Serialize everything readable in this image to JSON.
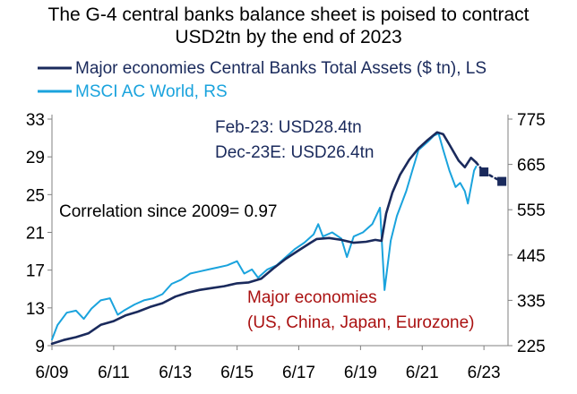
{
  "chart_data": {
    "type": "line",
    "title_lines": [
      "The G-4 central banks balance sheet is poised to contract",
      "USD2tn by the end of 2023"
    ],
    "legend": [
      {
        "label": "Major economies Central Banks Total Assets ($ tn), LS",
        "color": "#1a2a5c"
      },
      {
        "label": "MSCI AC World, RS",
        "color": "#1aa3dd"
      }
    ],
    "x_axis": {
      "ticks": [
        "6/09",
        "6/11",
        "6/13",
        "6/15",
        "6/17",
        "6/19",
        "6/21",
        "6/23"
      ],
      "tick_years": [
        2009.42,
        2011.42,
        2013.42,
        2015.42,
        2017.42,
        2019.42,
        2021.42,
        2023.42
      ],
      "range": [
        2009.42,
        2024.2
      ]
    },
    "y_left": {
      "ticks": [
        "9",
        "13",
        "17",
        "21",
        "25",
        "29",
        "33"
      ],
      "range": [
        9,
        33
      ]
    },
    "y_right": {
      "ticks": [
        "225",
        "335",
        "445",
        "555",
        "665",
        "775"
      ],
      "range": [
        225,
        775
      ]
    },
    "annotations": [
      {
        "text": "Feb-23: USD28.4tn",
        "color": "#1a2a5c"
      },
      {
        "text": "Dec-23E: USD26.4tn",
        "color": "#1a2a5c"
      },
      {
        "text": "Correlation since 2009= 0.97",
        "color": "#000000"
      },
      {
        "text": "Major economies",
        "color": "#aa1111"
      },
      {
        "text": "(US, China, Japan, Eurozone)",
        "color": "#aa1111"
      }
    ],
    "series": [
      {
        "name": "Major economies Central Banks Total Assets ($ tn), LS",
        "axis": "left",
        "color": "#1a2a5c",
        "x": [
          2009.42,
          2009.8,
          2010.2,
          2010.6,
          2011.0,
          2011.42,
          2011.8,
          2012.2,
          2012.6,
          2013.0,
          2013.42,
          2013.8,
          2014.2,
          2014.6,
          2015.0,
          2015.42,
          2015.8,
          2016.2,
          2016.6,
          2017.0,
          2017.42,
          2017.8,
          2018.0,
          2018.4,
          2018.8,
          2019.2,
          2019.6,
          2019.9,
          2020.1,
          2020.25,
          2020.45,
          2020.7,
          2021.0,
          2021.3,
          2021.6,
          2021.9,
          2022.1,
          2022.3,
          2022.6,
          2022.8,
          2023.0,
          2023.17
        ],
        "y": [
          9.2,
          9.6,
          9.9,
          10.3,
          11.2,
          11.6,
          12.2,
          12.6,
          13.1,
          13.5,
          14.2,
          14.6,
          14.9,
          15.1,
          15.3,
          15.6,
          15.7,
          16.1,
          17.2,
          18.2,
          19.1,
          19.9,
          20.3,
          20.4,
          20.2,
          19.9,
          20.0,
          20.2,
          20.1,
          23.0,
          25.2,
          27.1,
          28.7,
          29.9,
          30.8,
          31.6,
          31.4,
          30.3,
          28.6,
          27.9,
          28.9,
          28.4
        ]
      },
      {
        "name": "Major economies Central Banks Total Assets ($ tn) — estimate",
        "axis": "left",
        "color": "#1a2a5c",
        "dashed": true,
        "x": [
          2023.17,
          2023.42,
          2023.75,
          2024.0
        ],
        "y": [
          28.4,
          27.4,
          26.8,
          26.4
        ]
      },
      {
        "name": "MSCI AC World, RS",
        "axis": "right",
        "color": "#1aa3dd",
        "x": [
          2009.42,
          2009.6,
          2009.9,
          2010.2,
          2010.45,
          2010.7,
          2011.0,
          2011.3,
          2011.55,
          2011.75,
          2012.1,
          2012.4,
          2012.7,
          2013.0,
          2013.3,
          2013.6,
          2013.9,
          2014.2,
          2014.5,
          2014.8,
          2015.1,
          2015.42,
          2015.65,
          2015.9,
          2016.1,
          2016.4,
          2016.7,
          2017.0,
          2017.3,
          2017.6,
          2017.9,
          2018.05,
          2018.2,
          2018.5,
          2018.8,
          2018.98,
          2019.2,
          2019.5,
          2019.8,
          2020.05,
          2020.2,
          2020.4,
          2020.6,
          2020.9,
          2021.1,
          2021.3,
          2021.6,
          2021.8,
          2021.95,
          2022.1,
          2022.3,
          2022.5,
          2022.65,
          2022.8,
          2022.9,
          2023.1,
          2023.17
        ],
        "y": [
          240,
          275,
          305,
          310,
          290,
          315,
          335,
          340,
          300,
          310,
          325,
          335,
          340,
          350,
          375,
          385,
          400,
          405,
          410,
          415,
          420,
          430,
          400,
          410,
          390,
          410,
          420,
          440,
          460,
          475,
          495,
          520,
          490,
          500,
          485,
          440,
          490,
          500,
          520,
          560,
          360,
          480,
          540,
          600,
          650,
          700,
          720,
          735,
          740,
          700,
          650,
          610,
          620,
          600,
          570,
          650,
          660
        ]
      }
    ],
    "markers": {
      "color": "#1a2a5c",
      "x": [
        2023.42,
        2024.0
      ],
      "y": [
        27.4,
        26.4
      ]
    }
  }
}
